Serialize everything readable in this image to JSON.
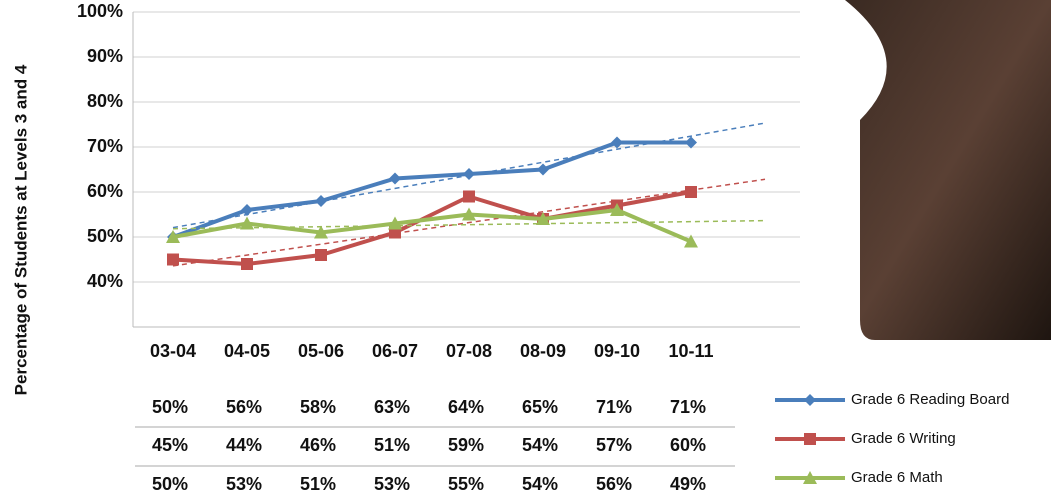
{
  "chart_data": {
    "type": "line",
    "y_label": "Percentage of Students at Levels 3 and 4",
    "categories": [
      "03-04",
      "04-05",
      "05-06",
      "06-07",
      "07-08",
      "08-09",
      "09-10",
      "10-11"
    ],
    "series": [
      {
        "name": "Grade 6 Reading Board",
        "color": "#4a7ebb",
        "marker": "diamond",
        "values": [
          50,
          56,
          58,
          63,
          64,
          65,
          71,
          71
        ],
        "value_labels": [
          "50%",
          "56%",
          "58%",
          "63%",
          "64%",
          "65%",
          "71%",
          "71%"
        ]
      },
      {
        "name": "Grade 6 Writing",
        "color": "#c0504d",
        "marker": "square",
        "values": [
          45,
          44,
          46,
          51,
          59,
          54,
          57,
          60
        ],
        "value_labels": [
          "45%",
          "44%",
          "46%",
          "51%",
          "59%",
          "54%",
          "57%",
          "60%"
        ]
      },
      {
        "name": "Grade 6 Math",
        "color": "#9bbb59",
        "marker": "triangle",
        "values": [
          50,
          53,
          51,
          53,
          55,
          54,
          56,
          49
        ],
        "value_labels": [
          "50%",
          "53%",
          "51%",
          "53%",
          "55%",
          "54%",
          "56%",
          "49%"
        ]
      }
    ],
    "ylim": [
      30,
      100
    ],
    "yticks": [
      {
        "value": 40,
        "label": "40%"
      },
      {
        "value": 50,
        "label": "50%"
      },
      {
        "value": 60,
        "label": "60%"
      },
      {
        "value": 70,
        "label": "70%"
      },
      {
        "value": 80,
        "label": "80%"
      },
      {
        "value": 90,
        "label": "90%"
      },
      {
        "value": 100,
        "label": "100%"
      }
    ],
    "grid": true,
    "trendline": true
  }
}
